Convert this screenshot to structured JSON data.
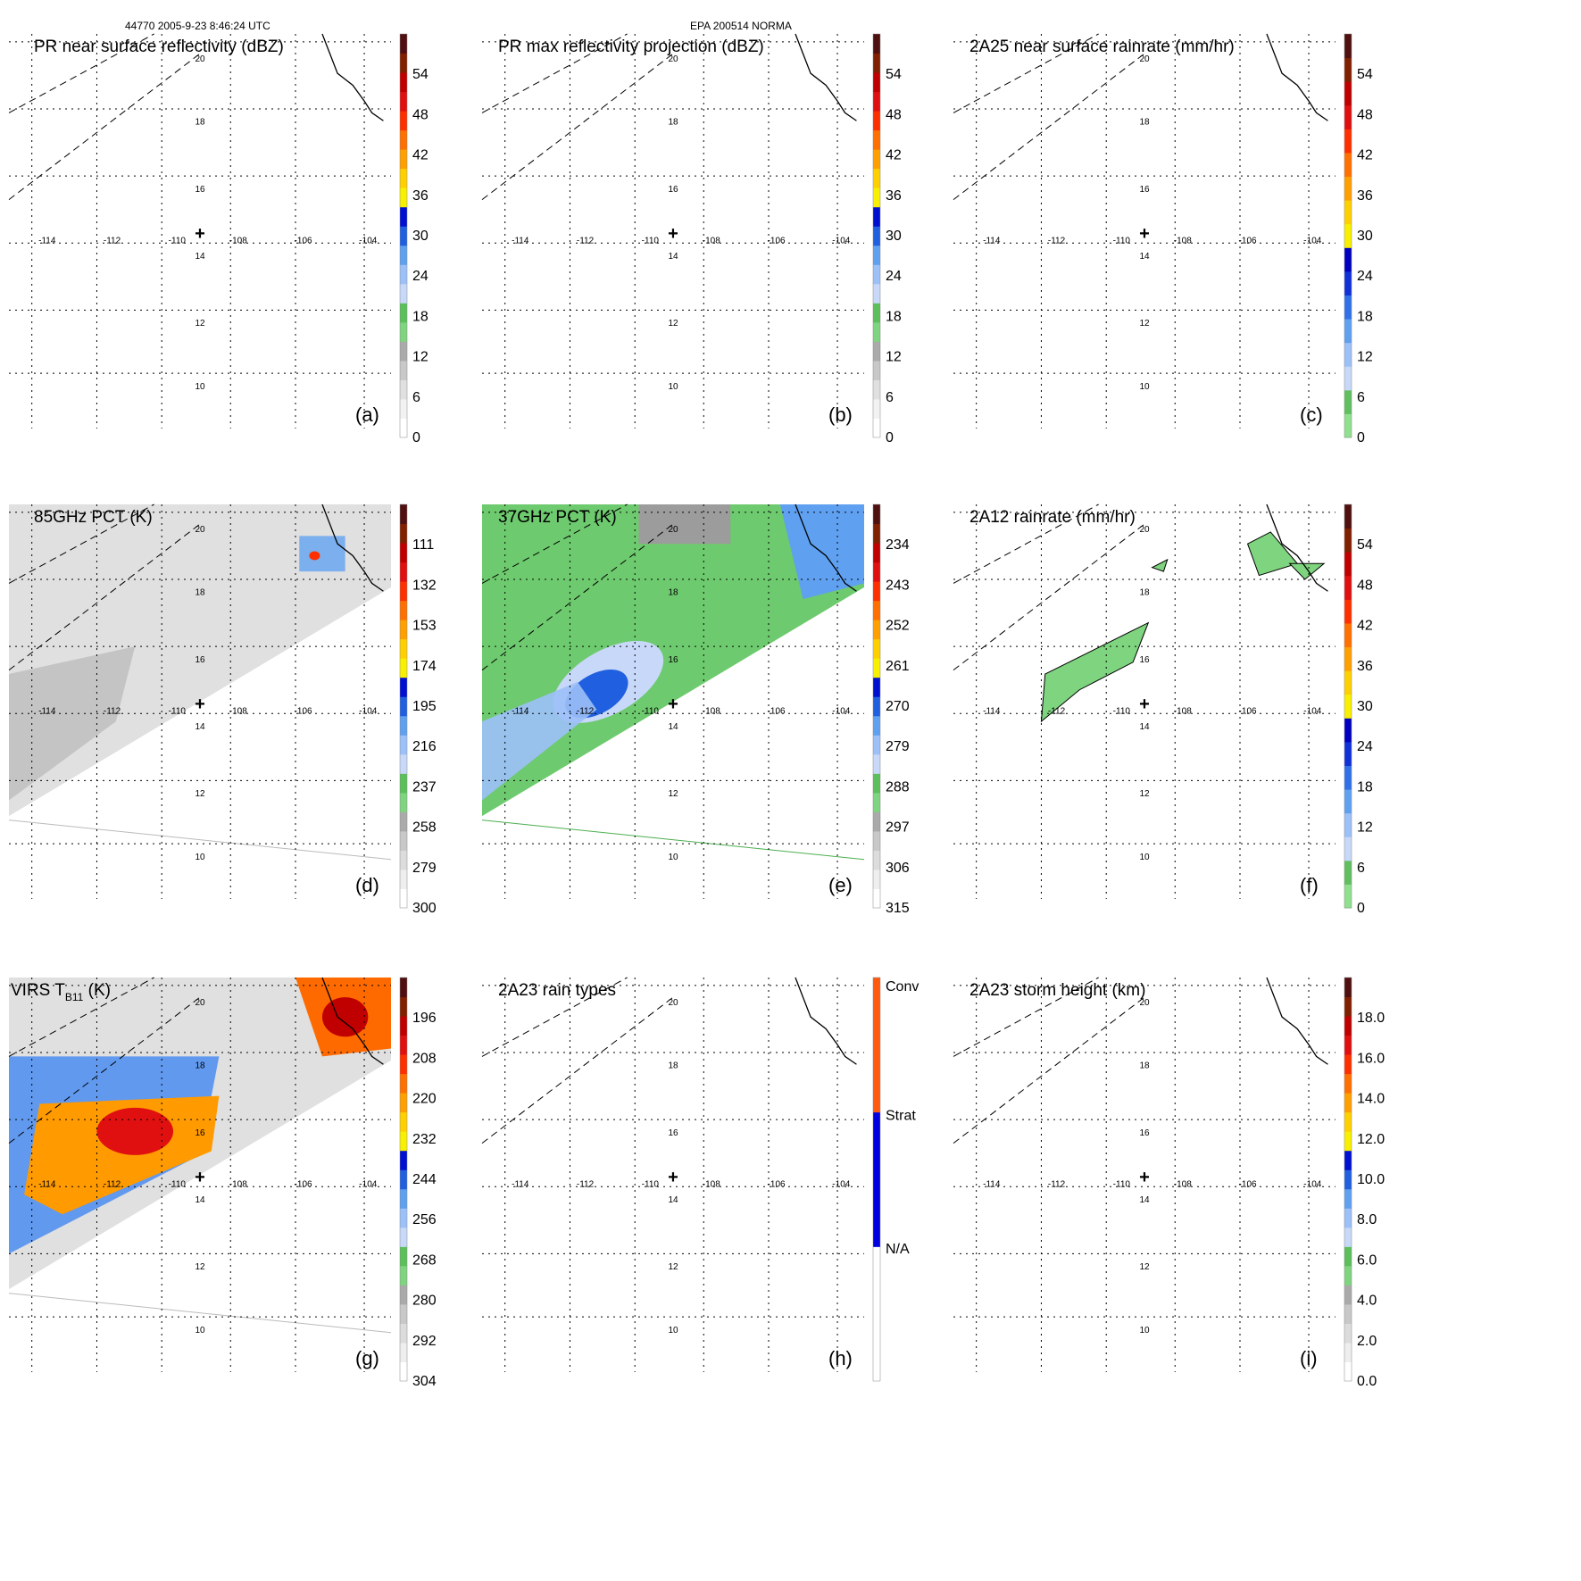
{
  "header": {
    "left": "44770 2005-9-23 8:46:24 UTC",
    "center": "EPA 200514 NORMA"
  },
  "map": {
    "lon_ticks": [
      "-114",
      "-112",
      "-110",
      "-108",
      "-106",
      "-104"
    ],
    "lat_ticks": [
      "10",
      "12",
      "14",
      "16",
      "18",
      "20"
    ],
    "center_marker": "+"
  },
  "panels": [
    {
      "title": "PR near surface reflectivity (dBZ)",
      "letter": "(a)",
      "ticks": [
        "0",
        "6",
        "12",
        "18",
        "24",
        "30",
        "36",
        "42",
        "48",
        "54"
      ],
      "colorscale": "dbz",
      "field": "none",
      "swath": "none"
    },
    {
      "title": "PR max reflectivity projection (dBZ)",
      "letter": "(b)",
      "ticks": [
        "0",
        "6",
        "12",
        "18",
        "24",
        "30",
        "36",
        "42",
        "48",
        "54"
      ],
      "colorscale": "dbz",
      "field": "none",
      "swath": "none"
    },
    {
      "title": "2A25 near surface rainrate (mm/hr)",
      "letter": "(c)",
      "ticks": [
        "0",
        "6",
        "12",
        "18",
        "24",
        "30",
        "36",
        "42",
        "48",
        "54"
      ],
      "colorscale": "rain",
      "field": "none",
      "swath": "none"
    },
    {
      "title": "85GHz PCT (K)",
      "letter": "(d)",
      "ticks": [
        "300",
        "279",
        "258",
        "237",
        "216",
        "195",
        "174",
        "153",
        "132",
        "111"
      ],
      "colorscale": "pct",
      "field": "gray-swath",
      "swath": "gray"
    },
    {
      "title": "37GHz PCT (K)",
      "letter": "(e)",
      "ticks": [
        "315",
        "306",
        "297",
        "288",
        "279",
        "270",
        "261",
        "252",
        "243",
        "234"
      ],
      "colorscale": "pct",
      "field": "green-swath",
      "swath": "green"
    },
    {
      "title": "2A12 rainrate (mm/hr)",
      "letter": "(f)",
      "ticks": [
        "0",
        "6",
        "12",
        "18",
        "24",
        "30",
        "36",
        "42",
        "48",
        "54"
      ],
      "colorscale": "rain",
      "field": "rain-patches",
      "swath": "none"
    },
    {
      "title": "VIRS T",
      "title_sub": "B11",
      "title_end": " (K)",
      "letter": "(g)",
      "ticks": [
        "304",
        "292",
        "280",
        "268",
        "256",
        "244",
        "232",
        "220",
        "208",
        "196"
      ],
      "colorscale": "virs",
      "field": "ir-swath",
      "swath": "gray"
    },
    {
      "title": "2A23 rain types",
      "letter": "(h)",
      "ticks": [],
      "categorical": [
        "N/A",
        "Strat",
        "Conv"
      ],
      "colorscale": "types",
      "field": "none",
      "swath": "none"
    },
    {
      "title": "2A23 storm height (km)",
      "letter": "(i)",
      "ticks": [
        "0.0",
        "2.0",
        "4.0",
        "6.0",
        "8.0",
        "10.0",
        "12.0",
        "14.0",
        "16.0",
        "18.0"
      ],
      "colorscale": "height",
      "field": "none",
      "swath": "none"
    }
  ],
  "colors": {
    "dbz": [
      "#ffffff",
      "#f2f2f2",
      "#e0e0e0",
      "#c8c8c8",
      "#aaaaaa",
      "#7fd47f",
      "#5cbf5c",
      "#c8d8f8",
      "#9cc0f8",
      "#60a0f0",
      "#2060e0",
      "#0010d0",
      "#f8f000",
      "#ffd000",
      "#ffa000",
      "#ff7000",
      "#ff3000",
      "#e01010",
      "#c00000",
      "#802000",
      "#501010"
    ],
    "rain": [
      "#90e090",
      "#60c060",
      "#c8d8f8",
      "#9cc0f8",
      "#60a0f0",
      "#3070e8",
      "#1030d8",
      "#0000c0",
      "#f8f000",
      "#ffd000",
      "#ffa000",
      "#ff7000",
      "#ff3000",
      "#e01010",
      "#c00000",
      "#802000",
      "#501010"
    ],
    "pct": [
      "#ffffff",
      "#eeeeee",
      "#dcdcdc",
      "#c8c8c8",
      "#aaaaaa",
      "#7fd47f",
      "#5cbf5c",
      "#c8d8f8",
      "#9cc0f8",
      "#60a0f0",
      "#2060e0",
      "#0010d0",
      "#f8f000",
      "#ffd000",
      "#ffa000",
      "#ff7000",
      "#ff3000",
      "#e01010",
      "#c00000",
      "#802000",
      "#501010"
    ],
    "virs": [
      "#ffffff",
      "#eeeeee",
      "#dcdcdc",
      "#c8c8c8",
      "#aaaaaa",
      "#7fd47f",
      "#5cbf5c",
      "#c8d8f8",
      "#9cc0f8",
      "#60a0f0",
      "#2060e0",
      "#0010d0",
      "#f8f000",
      "#ffd000",
      "#ffa000",
      "#ff7000",
      "#ff3000",
      "#e01010",
      "#c00000",
      "#802000",
      "#501010"
    ],
    "height": [
      "#ffffff",
      "#eeeeee",
      "#dcdcdc",
      "#c8c8c8",
      "#aaaaaa",
      "#7fd47f",
      "#5cbf5c",
      "#c8d8f8",
      "#9cc0f8",
      "#60a0f0",
      "#2060e0",
      "#0010d0",
      "#f8f000",
      "#ffd000",
      "#ffa000",
      "#ff7000",
      "#ff3000",
      "#e01010",
      "#c00000",
      "#802000",
      "#501010"
    ],
    "types": [
      "#ffffff",
      "#0000e0",
      "#ff5a10"
    ]
  },
  "chart_data": [
    {
      "type": "heatmap",
      "title": "PR near surface reflectivity (dBZ)",
      "colorbar_ticks": [
        0,
        6,
        12,
        18,
        24,
        30,
        36,
        42,
        48,
        54
      ],
      "x_ticks": [
        -114,
        -112,
        -110,
        -108,
        -106,
        -104
      ],
      "y_ticks": [
        10,
        12,
        14,
        16,
        18,
        20
      ]
    },
    {
      "type": "heatmap",
      "title": "PR max reflectivity projection (dBZ)",
      "colorbar_ticks": [
        0,
        6,
        12,
        18,
        24,
        30,
        36,
        42,
        48,
        54
      ],
      "x_ticks": [
        -114,
        -112,
        -110,
        -108,
        -106,
        -104
      ],
      "y_ticks": [
        10,
        12,
        14,
        16,
        18,
        20
      ]
    },
    {
      "type": "heatmap",
      "title": "2A25 near surface rainrate (mm/hr)",
      "colorbar_ticks": [
        0,
        6,
        12,
        18,
        24,
        30,
        36,
        42,
        48,
        54
      ],
      "x_ticks": [
        -114,
        -112,
        -110,
        -108,
        -106,
        -104
      ],
      "y_ticks": [
        10,
        12,
        14,
        16,
        18,
        20
      ]
    },
    {
      "type": "heatmap",
      "title": "85GHz PCT (K)",
      "colorbar_ticks": [
        300,
        279,
        258,
        237,
        216,
        195,
        174,
        153,
        132,
        111
      ],
      "x_ticks": [
        -114,
        -112,
        -110,
        -108,
        -106,
        -104
      ],
      "y_ticks": [
        10,
        12,
        14,
        16,
        18,
        20
      ]
    },
    {
      "type": "heatmap",
      "title": "37GHz PCT (K)",
      "colorbar_ticks": [
        315,
        306,
        297,
        288,
        279,
        270,
        261,
        252,
        243,
        234
      ],
      "x_ticks": [
        -114,
        -112,
        -110,
        -108,
        -106,
        -104
      ],
      "y_ticks": [
        10,
        12,
        14,
        16,
        18,
        20
      ]
    },
    {
      "type": "heatmap",
      "title": "2A12 rainrate (mm/hr)",
      "colorbar_ticks": [
        0,
        6,
        12,
        18,
        24,
        30,
        36,
        42,
        48,
        54
      ],
      "x_ticks": [
        -114,
        -112,
        -110,
        -108,
        -106,
        -104
      ],
      "y_ticks": [
        10,
        12,
        14,
        16,
        18,
        20
      ]
    },
    {
      "type": "heatmap",
      "title": "VIRS TB11 (K)",
      "colorbar_ticks": [
        304,
        292,
        280,
        268,
        256,
        244,
        232,
        220,
        208,
        196
      ],
      "x_ticks": [
        -114,
        -112,
        -110,
        -108,
        -106,
        -104
      ],
      "y_ticks": [
        10,
        12,
        14,
        16,
        18,
        20
      ]
    },
    {
      "type": "heatmap",
      "title": "2A23 rain types",
      "colorbar_categories": [
        "N/A",
        "Strat",
        "Conv"
      ],
      "x_ticks": [
        -114,
        -112,
        -110,
        -108,
        -106,
        -104
      ],
      "y_ticks": [
        10,
        12,
        14,
        16,
        18,
        20
      ]
    },
    {
      "type": "heatmap",
      "title": "2A23 storm height (km)",
      "colorbar_ticks": [
        0.0,
        2.0,
        4.0,
        6.0,
        8.0,
        10.0,
        12.0,
        14.0,
        16.0,
        18.0
      ],
      "x_ticks": [
        -114,
        -112,
        -110,
        -108,
        -106,
        -104
      ],
      "y_ticks": [
        10,
        12,
        14,
        16,
        18,
        20
      ]
    }
  ]
}
